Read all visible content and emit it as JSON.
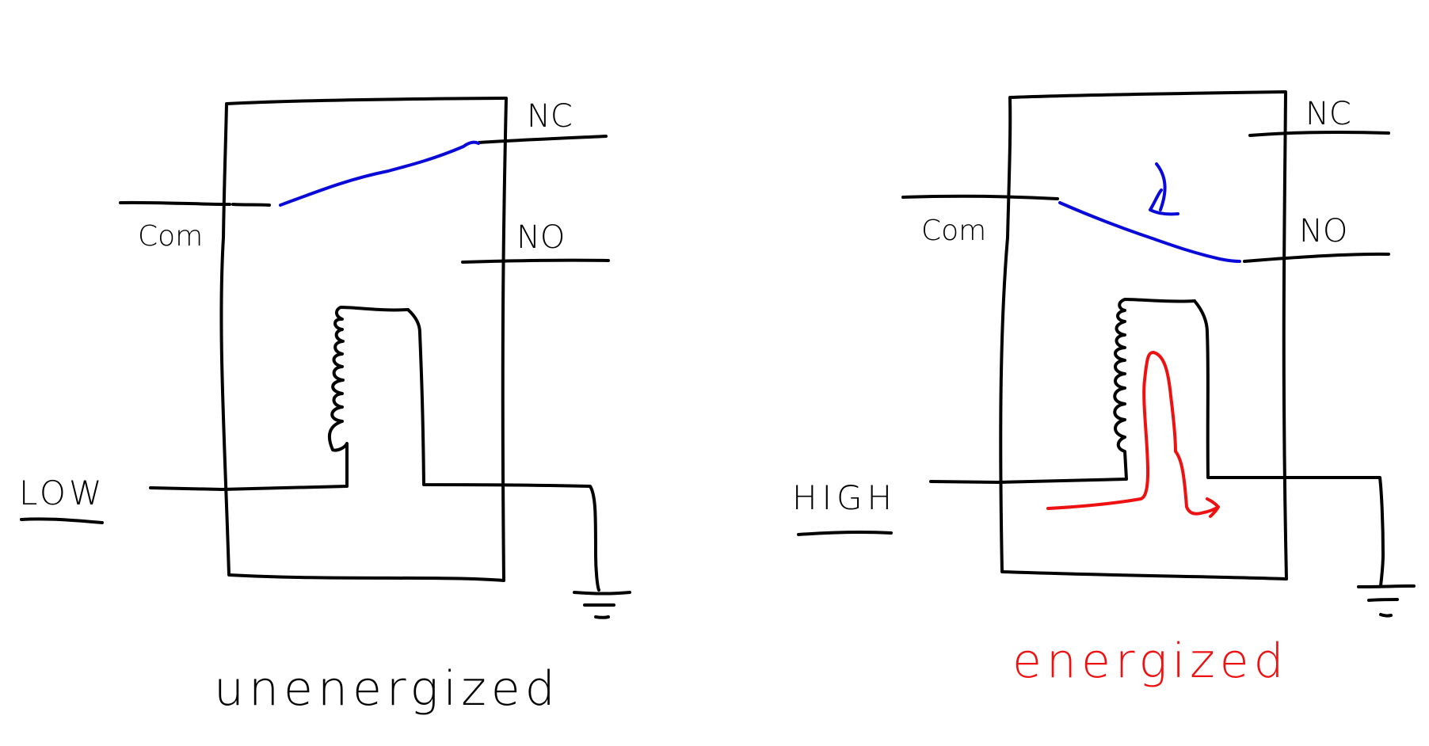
{
  "colors": {
    "ink": "#000000",
    "contact": "#0a0ad8",
    "current": "#ee1111",
    "background": "#ffffff"
  },
  "left_relay": {
    "state_label": "unenergized",
    "input_label": "LOW",
    "com_label": "Com",
    "nc_label": "NC",
    "no_label": "NO",
    "contact_position": "NC"
  },
  "right_relay": {
    "state_label": "energized",
    "input_label": "HIGH",
    "com_label": "Com",
    "nc_label": "NC",
    "no_label": "NO",
    "contact_position": "NO"
  }
}
